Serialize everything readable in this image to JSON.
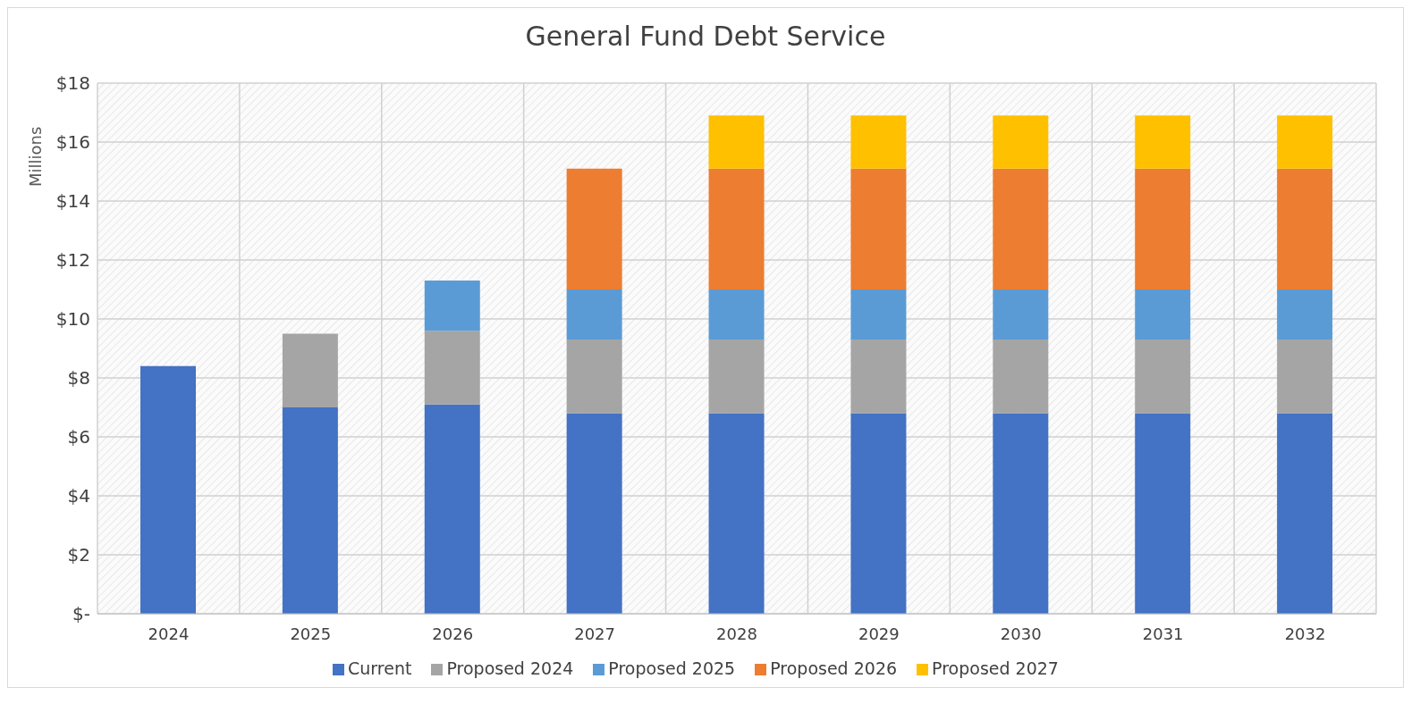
{
  "chart_data": {
    "type": "bar",
    "title": "General Fund Debt Service",
    "ylabel": "Millions",
    "categories": [
      "2024",
      "2025",
      "2026",
      "2027",
      "2028",
      "2029",
      "2030",
      "2031",
      "2032"
    ],
    "stacked": true,
    "series": [
      {
        "name": "Current",
        "color": "#4472c4",
        "values": [
          8.4,
          7.0,
          7.1,
          6.8,
          6.8,
          6.8,
          6.8,
          6.8,
          6.8
        ]
      },
      {
        "name": "Proposed 2024",
        "color": "#a5a5a5",
        "values": [
          null,
          2.5,
          2.5,
          2.5,
          2.5,
          2.5,
          2.5,
          2.5,
          2.5
        ]
      },
      {
        "name": "Proposed 2025",
        "color": "#5b9bd5",
        "values": [
          null,
          null,
          1.7,
          1.7,
          1.7,
          1.7,
          1.7,
          1.7,
          1.7
        ]
      },
      {
        "name": "Proposed 2026",
        "color": "#ed7d31",
        "values": [
          null,
          null,
          null,
          4.1,
          4.1,
          4.1,
          4.1,
          4.1,
          4.1
        ]
      },
      {
        "name": "Proposed 2027",
        "color": "#ffc000",
        "values": [
          null,
          null,
          null,
          null,
          1.8,
          1.8,
          1.8,
          1.8,
          1.8
        ]
      }
    ],
    "ylim": [
      0,
      18
    ],
    "yticks": [
      {
        "value": 0,
        "label": "$-"
      },
      {
        "value": 2,
        "label": "$2"
      },
      {
        "value": 4,
        "label": "$4"
      },
      {
        "value": 6,
        "label": "$6"
      },
      {
        "value": 8,
        "label": "$8"
      },
      {
        "value": 10,
        "label": "$10"
      },
      {
        "value": 12,
        "label": "$12"
      },
      {
        "value": 14,
        "label": "$14"
      },
      {
        "value": 16,
        "label": "$16"
      },
      {
        "value": 18,
        "label": "$18"
      }
    ],
    "grid": true,
    "legend": "bottom"
  }
}
